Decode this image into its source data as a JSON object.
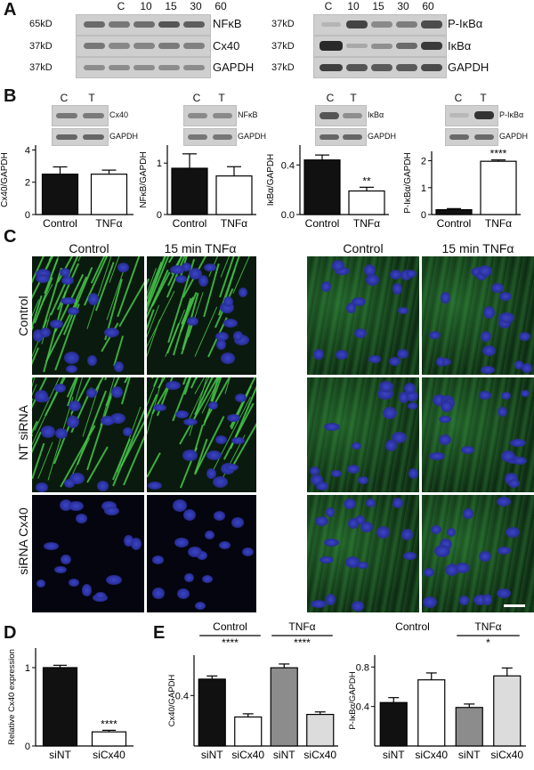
{
  "panel_labels": {
    "A": "A",
    "B": "B",
    "C": "C",
    "D": "D",
    "E": "E"
  },
  "panelA": {
    "left": {
      "lanes": [
        "C",
        "10",
        "15",
        "30",
        "60"
      ],
      "rows": [
        {
          "mw": "65kD",
          "protein": "NFκB"
        },
        {
          "mw": "37kD",
          "protein": "Cx40"
        },
        {
          "mw": "37kD",
          "protein": "GAPDH"
        }
      ]
    },
    "right": {
      "lanes": [
        "C",
        "10",
        "15",
        "30",
        "60"
      ],
      "rows": [
        {
          "mw": "37kD",
          "protein": "P-IκBα"
        },
        {
          "mw": "37kD",
          "protein": "IκBα"
        },
        {
          "mw": "37kD",
          "protein": "GAPDH"
        }
      ]
    }
  },
  "panelB": {
    "blot_lanes": [
      "C",
      "T"
    ],
    "blot_labels": [
      "Cx40",
      "NFκB",
      "IκBα",
      "P-IκBα"
    ],
    "gapdh_label": "GAPDH",
    "charts": [
      {
        "ylabel": "Cx40/GAPDH",
        "ticks": [
          "0",
          "2",
          "4"
        ],
        "categories": [
          "Control",
          "TNFα"
        ],
        "values": [
          2.5,
          2.5
        ],
        "errors": [
          0.45,
          0.25
        ],
        "ymax": 4.3,
        "sig": ""
      },
      {
        "ylabel": "NFκB/GAPDH",
        "ticks": [
          "0",
          "1"
        ],
        "categories": [
          "Control",
          "TNFα"
        ],
        "values": [
          0.9,
          0.75
        ],
        "errors": [
          0.28,
          0.18
        ],
        "ymax": 1.35,
        "sig": ""
      },
      {
        "ylabel": "IκBα/GAPDH",
        "ticks": [
          "0.0",
          "0.4"
        ],
        "categories": [
          "Control",
          "TNFα"
        ],
        "values": [
          0.44,
          0.19
        ],
        "errors": [
          0.04,
          0.03
        ],
        "ymax": 0.56,
        "sig": "**"
      },
      {
        "ylabel": "P-IκBα/GAPDH",
        "ticks": [
          "0",
          "1",
          "2"
        ],
        "categories": [
          "Control",
          "TNFα"
        ],
        "values": [
          0.18,
          1.98
        ],
        "errors": [
          0.04,
          0.05
        ],
        "ymax": 2.35,
        "sig": "****"
      }
    ]
  },
  "panelC": {
    "col_headers": [
      "Control",
      "15 min TNFα",
      "Control",
      "15 min TNFα"
    ],
    "row_labels": [
      "Control",
      "NT siRNA",
      "siRNA Cx40"
    ]
  },
  "chart_data": [
    {
      "type": "bar",
      "ylabel": "Relative Cx40 expression",
      "categories": [
        "siNT",
        "siCx40"
      ],
      "values": [
        1.0,
        0.18
      ],
      "errors": [
        0.03,
        0.02
      ],
      "ticks": [
        "0",
        "1"
      ],
      "ylim": [
        0,
        1.25
      ],
      "annotations": [
        "****"
      ]
    },
    {
      "type": "bar",
      "ylabel": "Cx40/GAPDH",
      "categories": [
        "siNT",
        "siCx40",
        "siNT",
        "siCx40"
      ],
      "values": [
        0.53,
        0.23,
        0.62,
        0.25
      ],
      "errors": [
        0.025,
        0.025,
        0.03,
        0.02
      ],
      "ticks": [
        "0.4"
      ],
      "ylim": [
        0,
        0.72
      ],
      "groups": [
        "Control",
        "TNFα"
      ],
      "annotations": [
        "****",
        "****"
      ]
    },
    {
      "type": "bar",
      "ylabel": "P-IκBα/GAPDH",
      "categories": [
        "siNT",
        "siCx40",
        "siNT",
        "siCx40"
      ],
      "values": [
        0.44,
        0.67,
        0.39,
        0.71
      ],
      "errors": [
        0.05,
        0.07,
        0.035,
        0.08
      ],
      "ticks": [
        "0.4",
        "0.8"
      ],
      "ylim": [
        0,
        0.92
      ],
      "groups": [
        "Control",
        "TNFα"
      ],
      "annotations": [
        "",
        "*"
      ]
    }
  ]
}
